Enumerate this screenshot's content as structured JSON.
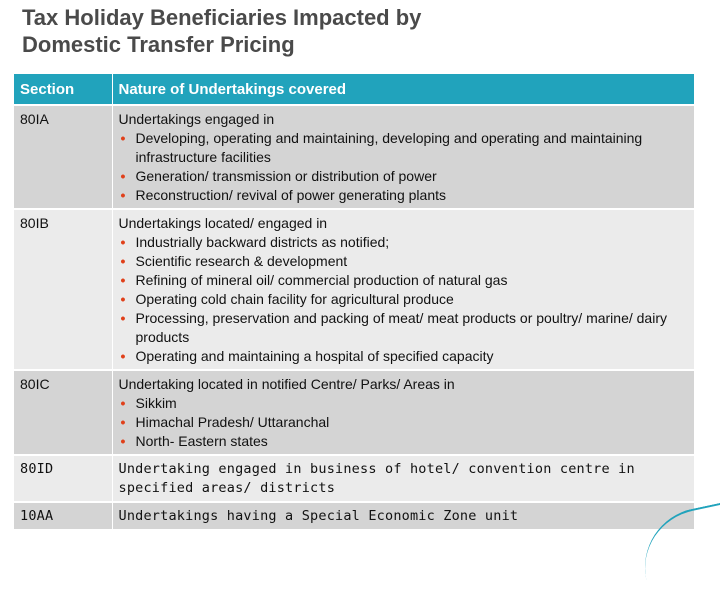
{
  "slide": {
    "title_line1": "Tax Holiday Beneficiaries Impacted by",
    "title_line2": "Domestic Transfer Pricing"
  },
  "table": {
    "headers": [
      "Section",
      "Nature of Undertakings covered"
    ],
    "rows": [
      {
        "section": "80IA",
        "intro": "Undertakings engaged in",
        "items": [
          "Developing, operating and maintaining, developing and operating and maintaining infrastructure facilities",
          "Generation/ transmission or distribution of power",
          "Reconstruction/ revival of power generating plants"
        ]
      },
      {
        "section": "80IB",
        "intro": "Undertakings located/ engaged in",
        "items": [
          "Industrially backward districts as notified;",
          "Scientific research & development",
          "Refining of mineral oil/ commercial production of natural gas",
          "Operating cold chain facility for agricultural produce",
          "Processing, preservation and packing of meat/ meat products or poultry/ marine/ dairy products",
          "Operating and maintaining a hospital of specified capacity"
        ]
      },
      {
        "section": "80IC",
        "intro": "Undertaking located in notified Centre/ Parks/ Areas in",
        "items": [
          "Sikkim",
          "Himachal Pradesh/ Uttaranchal",
          "North- Eastern states"
        ]
      },
      {
        "section": "80ID",
        "intro": "Undertaking engaged in business of hotel/ convention centre in specified areas/ districts",
        "items": []
      },
      {
        "section": "10AA",
        "intro": "Undertakings having a Special Economic Zone unit",
        "items": []
      }
    ]
  },
  "colors": {
    "header_bg": "#21a3bc",
    "row_dark": "#d4d4d4",
    "row_light": "#ebebeb",
    "bullet": "#e0401a",
    "title": "#4a4a4a"
  }
}
